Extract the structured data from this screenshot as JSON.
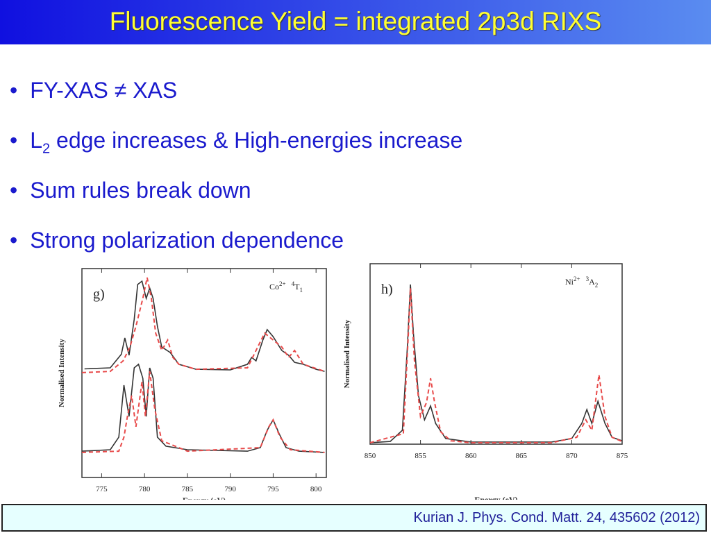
{
  "title": "Fluorescence Yield = integrated 2p3d RIXS",
  "bullets": [
    {
      "text": "FY-XAS ≠ XAS"
    },
    {
      "text": "L",
      "sub": "2",
      "tail": " edge increases & High-energies increase"
    },
    {
      "text": "Sum rules break down"
    },
    {
      "text": "Strong polarization dependence"
    }
  ],
  "citation": "Kurian J. Phys. Cond. Matt. 24, 435602 (2012)",
  "chart_data": [
    {
      "type": "line",
      "panel": "g)",
      "species": {
        "ion": "Co",
        "charge": "2+",
        "multiplicity": "4",
        "term": "T",
        "term_sub": "1"
      },
      "xlabel": "Energy (eV)",
      "ylabel": "Normalised Intensity",
      "xlim": [
        772.7,
        801.2
      ],
      "ylim": [
        0,
        1
      ],
      "xticks": [
        775,
        780,
        785,
        790,
        795,
        800
      ],
      "series": [
        {
          "color": "#333333",
          "dash": false,
          "x": [
            773,
            776,
            777.3,
            777.7,
            778.2,
            778.8,
            779.2,
            779.7,
            780.2,
            780.6,
            781,
            781.5,
            782,
            783,
            784,
            786,
            790,
            792,
            792.5,
            793,
            793.8,
            794.3,
            795,
            796,
            796.8,
            797.5,
            798.5,
            800,
            801
          ],
          "values": [
            0.52,
            0.525,
            0.59,
            0.668,
            0.585,
            0.757,
            0.924,
            0.94,
            0.857,
            0.907,
            0.857,
            0.724,
            0.625,
            0.598,
            0.542,
            0.518,
            0.515,
            0.542,
            0.575,
            0.558,
            0.658,
            0.708,
            0.674,
            0.608,
            0.585,
            0.551,
            0.542,
            0.518,
            0.508
          ]
        },
        {
          "color": "#e84a4a",
          "dash": true,
          "x": [
            772.7,
            776,
            777.5,
            778.3,
            779,
            779.8,
            780.3,
            780.8,
            781.3,
            782,
            782.7,
            783.3,
            784,
            786,
            792,
            794,
            795,
            796,
            796.8,
            797.5,
            798.5,
            801
          ],
          "values": [
            0.502,
            0.508,
            0.558,
            0.625,
            0.724,
            0.857,
            0.957,
            0.857,
            0.691,
            0.608,
            0.658,
            0.575,
            0.542,
            0.518,
            0.525,
            0.691,
            0.658,
            0.625,
            0.575,
            0.608,
            0.542,
            0.508
          ]
        },
        {
          "color": "#333333",
          "dash": false,
          "x": [
            772.7,
            776,
            777,
            777.6,
            778.2,
            778.8,
            779.3,
            779.8,
            780.2,
            780.6,
            781,
            781.5,
            782.5,
            785,
            792,
            793.5,
            794.3,
            795,
            795.7,
            796.5,
            798,
            801
          ],
          "values": [
            0.126,
            0.133,
            0.193,
            0.442,
            0.292,
            0.525,
            0.542,
            0.475,
            0.292,
            0.525,
            0.475,
            0.193,
            0.15,
            0.133,
            0.126,
            0.143,
            0.226,
            0.276,
            0.209,
            0.143,
            0.126,
            0.12
          ]
        },
        {
          "color": "#e84a4a",
          "dash": true,
          "x": [
            772.7,
            777,
            777.6,
            778,
            778.5,
            779,
            779.7,
            780.1,
            780.6,
            781.2,
            782,
            785,
            793.5,
            794.5,
            795,
            795.8,
            797,
            801
          ],
          "values": [
            0.12,
            0.126,
            0.193,
            0.292,
            0.392,
            0.243,
            0.458,
            0.292,
            0.508,
            0.326,
            0.176,
            0.126,
            0.143,
            0.243,
            0.276,
            0.193,
            0.133,
            0.12
          ]
        }
      ]
    },
    {
      "type": "line",
      "panel": "h)",
      "species": {
        "ion": "Ni",
        "charge": "2+",
        "multiplicity": "3",
        "term": "A",
        "term_sub": "2"
      },
      "xlabel": "Energy (eV)",
      "ylabel": "Normalised Intensity",
      "xlim": [
        850,
        875
      ],
      "ylim": [
        0,
        1
      ],
      "xticks": [
        850,
        855,
        860,
        865,
        870,
        875
      ],
      "series": [
        {
          "color": "#333333",
          "dash": false,
          "x": [
            850,
            852,
            853.2,
            853.7,
            854,
            854.3,
            854.8,
            855.4,
            856,
            856.5,
            857.5,
            860,
            868,
            870,
            871,
            871.5,
            872,
            872.6,
            873.3,
            874,
            875
          ],
          "values": [
            0.008,
            0.015,
            0.077,
            0.538,
            0.885,
            0.615,
            0.269,
            0.135,
            0.212,
            0.115,
            0.031,
            0.012,
            0.012,
            0.031,
            0.115,
            0.192,
            0.115,
            0.238,
            0.115,
            0.038,
            0.019
          ]
        },
        {
          "color": "#e84a4a",
          "dash": true,
          "x": [
            850,
            853.3,
            853.8,
            854,
            854.4,
            855,
            855.6,
            856,
            856.4,
            857,
            858,
            860,
            868,
            870.5,
            871.4,
            872,
            872.7,
            873.3,
            874,
            875
          ],
          "values": [
            0.008,
            0.058,
            0.615,
            0.865,
            0.462,
            0.154,
            0.231,
            0.365,
            0.231,
            0.069,
            0.019,
            0.008,
            0.008,
            0.038,
            0.135,
            0.077,
            0.385,
            0.154,
            0.038,
            0.015
          ]
        }
      ]
    }
  ]
}
